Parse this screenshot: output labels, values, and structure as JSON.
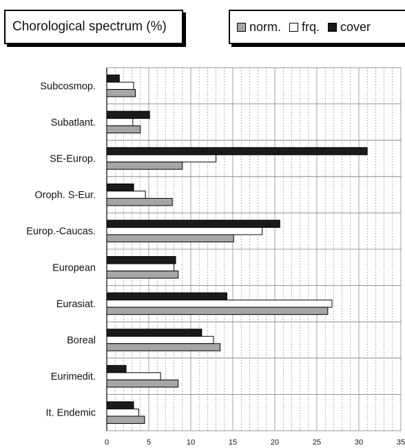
{
  "chart_data": {
    "type": "bar",
    "orientation": "horizontal",
    "title": "Chorological spectrum (%)",
    "categories": [
      "Subcosmop.",
      "Subatlant.",
      "SE-Europ.",
      "Oroph. S-Eur.",
      "Europ.-Caucas.",
      "European",
      "Eurasiat.",
      "Boreal",
      "Eurimedit.",
      "It. Endemic"
    ],
    "series": [
      {
        "name": "cover",
        "color": "#1a1a1a",
        "values": [
          1.5,
          5.1,
          31.0,
          3.2,
          20.6,
          8.2,
          14.3,
          11.3,
          2.3,
          3.2
        ]
      },
      {
        "name": "frq.",
        "color": "#ffffff",
        "values": [
          3.2,
          3.1,
          13.0,
          4.6,
          18.5,
          8.0,
          26.8,
          12.7,
          6.4,
          3.8
        ]
      },
      {
        "name": "norm.",
        "color": "#a6a6a6",
        "values": [
          3.4,
          4.0,
          9.0,
          7.8,
          15.1,
          8.5,
          26.3,
          13.5,
          8.5,
          4.5
        ]
      }
    ],
    "legend_order": [
      "norm.",
      "frq.",
      "cover"
    ],
    "xlim": [
      0,
      35
    ],
    "xticks": [
      0,
      5,
      10,
      15,
      20,
      25,
      30,
      35
    ],
    "grid": true,
    "legend_position": "top-right"
  }
}
